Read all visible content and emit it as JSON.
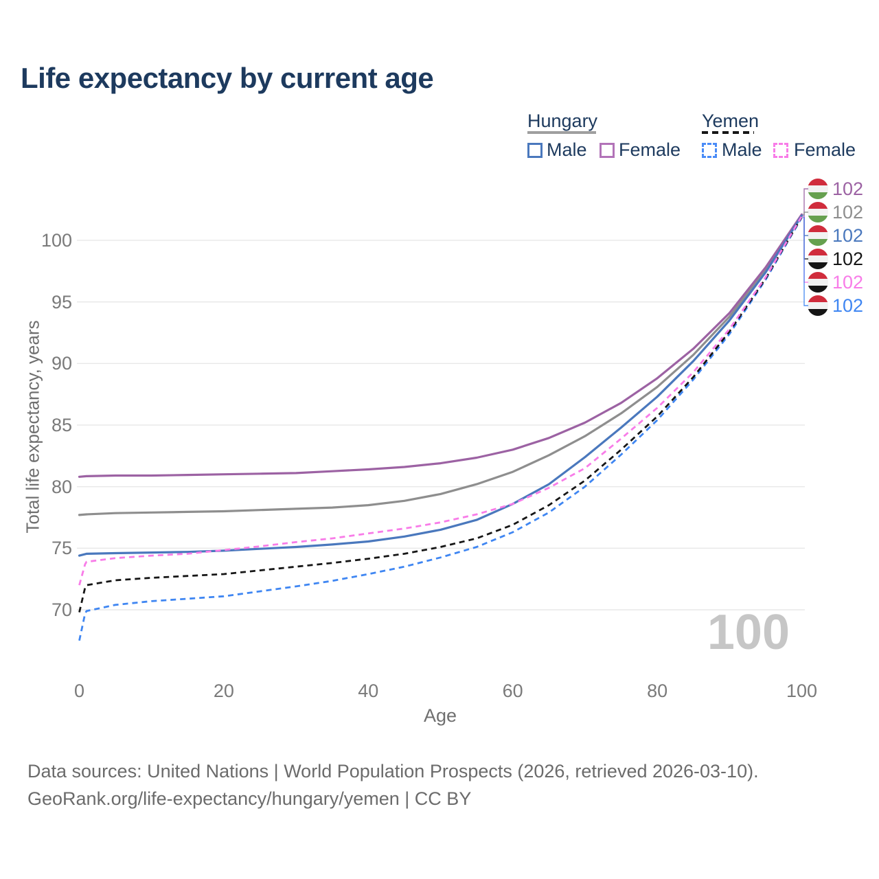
{
  "title": "Life expectancy by current age",
  "legend": {
    "groups": [
      {
        "label": "Hungary",
        "underline": {
          "color": "#9f9f9f",
          "dashed": false
        },
        "items": [
          {
            "label": "Male",
            "color": "#4a78bd",
            "dashed": false
          },
          {
            "label": "Female",
            "color": "#b273b8",
            "dashed": false
          }
        ]
      },
      {
        "label": "Yemen",
        "underline": {
          "color": "#161616",
          "dashed": true
        },
        "items": [
          {
            "label": "Male",
            "color": "#4a8cf7",
            "dashed": true
          },
          {
            "label": "Female",
            "color": "#f87ce8",
            "dashed": true
          }
        ]
      }
    ]
  },
  "chart_data": {
    "type": "line",
    "title": "Life expectancy by current age",
    "xlabel": "Age",
    "ylabel": "Total life expectancy, years",
    "xlim": [
      0,
      100
    ],
    "ylim": [
      66,
      103
    ],
    "xticks": [
      0,
      20,
      40,
      60,
      80,
      100
    ],
    "yticks": [
      70,
      75,
      80,
      85,
      90,
      95,
      100
    ],
    "grid": "horizontal-only",
    "legend_position": "top-right",
    "flags": {
      "hungary": [
        "#d02c3c",
        "#f2f2f2",
        "#66a04f"
      ],
      "yemen": [
        "#d02c3c",
        "#f2f2f2",
        "#151515"
      ]
    },
    "series": [
      {
        "name": "Hungary Female",
        "country": "Hungary",
        "sex": "Female",
        "color": "#9c62a3",
        "dashed": false,
        "end_label": "102",
        "label_row": 0,
        "flag": "hungary",
        "points": [
          [
            0,
            80.8
          ],
          [
            1,
            80.85
          ],
          [
            5,
            80.9
          ],
          [
            10,
            80.9
          ],
          [
            15,
            80.95
          ],
          [
            20,
            81.0
          ],
          [
            25,
            81.05
          ],
          [
            30,
            81.1
          ],
          [
            35,
            81.25
          ],
          [
            40,
            81.4
          ],
          [
            45,
            81.6
          ],
          [
            50,
            81.9
          ],
          [
            55,
            82.35
          ],
          [
            60,
            83.0
          ],
          [
            65,
            83.95
          ],
          [
            70,
            85.2
          ],
          [
            75,
            86.8
          ],
          [
            80,
            88.8
          ],
          [
            85,
            91.2
          ],
          [
            90,
            94.1
          ],
          [
            95,
            97.8
          ],
          [
            100,
            102.1
          ]
        ]
      },
      {
        "name": "Hungary Both sexes",
        "country": "Hungary",
        "sex": "Both",
        "color": "#8e8e8e",
        "dashed": false,
        "end_label": "102",
        "label_row": 1,
        "flag": "hungary",
        "points": [
          [
            0,
            77.7
          ],
          [
            1,
            77.75
          ],
          [
            5,
            77.85
          ],
          [
            10,
            77.9
          ],
          [
            15,
            77.95
          ],
          [
            20,
            78.0
          ],
          [
            25,
            78.1
          ],
          [
            30,
            78.2
          ],
          [
            35,
            78.3
          ],
          [
            40,
            78.5
          ],
          [
            45,
            78.85
          ],
          [
            50,
            79.4
          ],
          [
            55,
            80.2
          ],
          [
            60,
            81.2
          ],
          [
            65,
            82.55
          ],
          [
            70,
            84.1
          ],
          [
            75,
            85.95
          ],
          [
            80,
            88.1
          ],
          [
            85,
            90.7
          ],
          [
            90,
            93.8
          ],
          [
            95,
            97.6
          ],
          [
            100,
            102.05
          ]
        ]
      },
      {
        "name": "Hungary Male",
        "country": "Hungary",
        "sex": "Male",
        "color": "#4a78bd",
        "dashed": false,
        "end_label": "102",
        "label_row": 2,
        "flag": "hungary",
        "points": [
          [
            0,
            74.4
          ],
          [
            1,
            74.55
          ],
          [
            5,
            74.6
          ],
          [
            10,
            74.65
          ],
          [
            15,
            74.7
          ],
          [
            20,
            74.8
          ],
          [
            25,
            74.95
          ],
          [
            30,
            75.1
          ],
          [
            35,
            75.3
          ],
          [
            40,
            75.55
          ],
          [
            45,
            75.95
          ],
          [
            50,
            76.5
          ],
          [
            55,
            77.3
          ],
          [
            60,
            78.6
          ],
          [
            65,
            80.2
          ],
          [
            70,
            82.4
          ],
          [
            75,
            84.8
          ],
          [
            80,
            87.3
          ],
          [
            85,
            90.2
          ],
          [
            90,
            93.5
          ],
          [
            95,
            97.4
          ],
          [
            100,
            102.0
          ]
        ]
      },
      {
        "name": "Yemen Both sexes",
        "country": "Yemen",
        "sex": "Both",
        "color": "#161616",
        "dashed": true,
        "end_label": "102",
        "label_row": 3,
        "flag": "yemen",
        "points": [
          [
            0,
            69.8
          ],
          [
            0.8,
            71.8
          ],
          [
            1,
            72.0
          ],
          [
            5,
            72.4
          ],
          [
            10,
            72.6
          ],
          [
            15,
            72.75
          ],
          [
            20,
            72.9
          ],
          [
            25,
            73.2
          ],
          [
            30,
            73.5
          ],
          [
            35,
            73.8
          ],
          [
            40,
            74.15
          ],
          [
            45,
            74.55
          ],
          [
            50,
            75.1
          ],
          [
            55,
            75.8
          ],
          [
            60,
            76.9
          ],
          [
            65,
            78.5
          ],
          [
            70,
            80.5
          ],
          [
            75,
            83.0
          ],
          [
            80,
            85.7
          ],
          [
            85,
            88.9
          ],
          [
            90,
            92.6
          ],
          [
            95,
            96.9
          ],
          [
            100,
            101.9
          ]
        ]
      },
      {
        "name": "Yemen Female",
        "country": "Yemen",
        "sex": "Female",
        "color": "#f87ce8",
        "dashed": true,
        "end_label": "102",
        "label_row": 4,
        "flag": "yemen",
        "points": [
          [
            0,
            72.0
          ],
          [
            0.8,
            73.7
          ],
          [
            1,
            73.9
          ],
          [
            5,
            74.2
          ],
          [
            10,
            74.4
          ],
          [
            15,
            74.55
          ],
          [
            20,
            74.85
          ],
          [
            25,
            75.15
          ],
          [
            30,
            75.5
          ],
          [
            35,
            75.8
          ],
          [
            40,
            76.2
          ],
          [
            45,
            76.6
          ],
          [
            50,
            77.1
          ],
          [
            55,
            77.75
          ],
          [
            60,
            78.6
          ],
          [
            65,
            79.9
          ],
          [
            70,
            81.5
          ],
          [
            75,
            83.9
          ],
          [
            80,
            86.4
          ],
          [
            85,
            89.3
          ],
          [
            90,
            92.8
          ],
          [
            95,
            97.0
          ],
          [
            100,
            101.95
          ]
        ]
      },
      {
        "name": "Yemen Male",
        "country": "Yemen",
        "sex": "Male",
        "color": "#3f86f2",
        "dashed": true,
        "end_label": "102",
        "label_row": 5,
        "flag": "yemen",
        "points": [
          [
            0,
            67.5
          ],
          [
            0.8,
            69.7
          ],
          [
            1,
            69.9
          ],
          [
            5,
            70.4
          ],
          [
            10,
            70.7
          ],
          [
            15,
            70.9
          ],
          [
            20,
            71.1
          ],
          [
            25,
            71.5
          ],
          [
            30,
            71.9
          ],
          [
            35,
            72.35
          ],
          [
            40,
            72.9
          ],
          [
            45,
            73.5
          ],
          [
            50,
            74.25
          ],
          [
            55,
            75.1
          ],
          [
            60,
            76.3
          ],
          [
            65,
            77.9
          ],
          [
            70,
            80.0
          ],
          [
            75,
            82.6
          ],
          [
            80,
            85.4
          ],
          [
            85,
            88.7
          ],
          [
            90,
            92.4
          ],
          [
            95,
            96.8
          ],
          [
            100,
            101.85
          ]
        ]
      }
    ]
  },
  "watermark": "100",
  "footer": {
    "line1": "Data sources: United Nations | World Population Prospects (2026, retrieved 2026-03-10).",
    "line2": "GeoRank.org/life-expectancy/hungary/yemen | CC BY"
  }
}
